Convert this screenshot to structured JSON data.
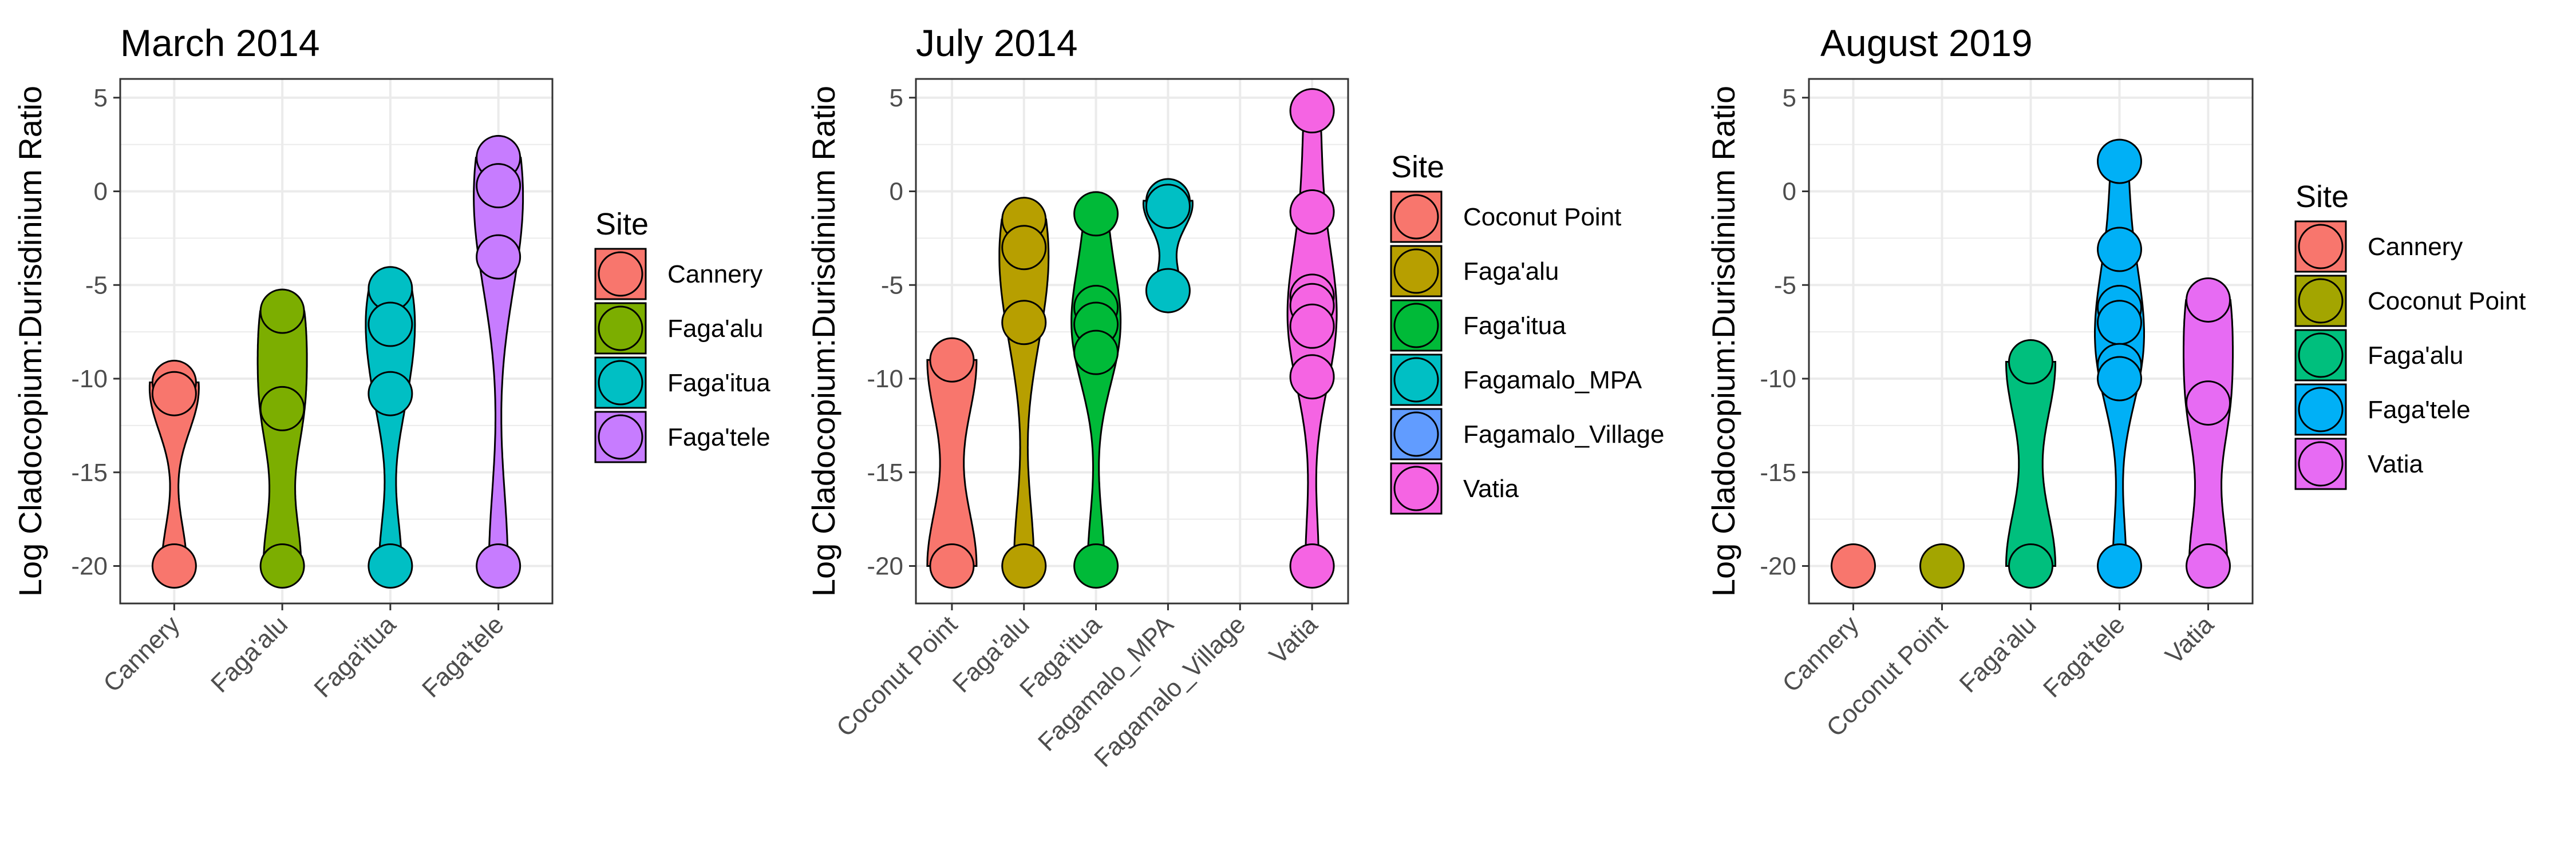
{
  "figure": {
    "ylabel": "Log Cladocopium:Durisdinium Ratio",
    "legend_title": "Site"
  },
  "chart_data": [
    {
      "type": "violin",
      "title": "March 2014",
      "ylabel": "Log Cladocopium:Durisdinium Ratio",
      "ylim": [
        -22,
        6
      ],
      "yticks": [
        5,
        0,
        -5,
        -10,
        -15,
        -20
      ],
      "ytick_labels": [
        "5",
        "0",
        "-5",
        "-10",
        "-15",
        "-20"
      ],
      "grid": true,
      "legend_title": "Site",
      "legend_position": "right",
      "categories": [
        "Cannery",
        "Faga'alu",
        "Faga'itua",
        "Faga'tele"
      ],
      "series": [
        {
          "name": "Cannery",
          "color": "#F8766D",
          "values": [
            -10.2,
            -10.8,
            -20
          ]
        },
        {
          "name": "Faga'alu",
          "color": "#7CAE00",
          "values": [
            -6.4,
            -11.6,
            -20
          ]
        },
        {
          "name": "Faga'itua",
          "color": "#00BFC4",
          "values": [
            -5.2,
            -7.1,
            -10.8,
            -20
          ]
        },
        {
          "name": "Faga'tele",
          "color": "#C77CFF",
          "values": [
            1.8,
            0.3,
            -3.5,
            -20
          ]
        }
      ]
    },
    {
      "type": "violin",
      "title": "July 2014",
      "ylabel": "Log Cladocopium:Durisdinium Ratio",
      "ylim": [
        -22,
        6
      ],
      "yticks": [
        5,
        0,
        -5,
        -10,
        -15,
        -20
      ],
      "ytick_labels": [
        "5",
        "0",
        "-5",
        "-10",
        "-15",
        "-20"
      ],
      "grid": true,
      "legend_title": "Site",
      "legend_position": "right",
      "categories": [
        "Coconut Point",
        "Faga'alu",
        "Faga'itua",
        "Fagamalo_MPA",
        "Fagamalo_Village",
        "Vatia"
      ],
      "series": [
        {
          "name": "Coconut Point",
          "color": "#F8766D",
          "values": [
            -9.0,
            -20
          ]
        },
        {
          "name": "Faga'alu",
          "color": "#B79F00",
          "values": [
            -1.5,
            -3.0,
            -7.0,
            -20
          ]
        },
        {
          "name": "Faga'itua",
          "color": "#00BA38",
          "values": [
            -1.2,
            -6.2,
            -7.1,
            -8.6,
            -20
          ]
        },
        {
          "name": "Fagamalo_MPA",
          "color": "#00BFC4",
          "values": [
            -0.5,
            -0.8,
            -5.3
          ]
        },
        {
          "name": "Fagamalo_Village",
          "color": "#619CFF",
          "values": []
        },
        {
          "name": "Vatia",
          "color": "#F564E3",
          "values": [
            4.3,
            -1.1,
            -5.6,
            -6.1,
            -7.2,
            -9.9,
            -20
          ]
        }
      ]
    },
    {
      "type": "violin",
      "title": "August 2019",
      "ylabel": "Log Cladocopium:Durisdinium Ratio",
      "ylim": [
        -22,
        6
      ],
      "yticks": [
        5,
        0,
        -5,
        -10,
        -15,
        -20
      ],
      "ytick_labels": [
        "5",
        "0",
        "-5",
        "-10",
        "-15",
        "-20"
      ],
      "grid": true,
      "legend_title": "Site",
      "legend_position": "right",
      "categories": [
        "Cannery",
        "Coconut Point",
        "Faga'alu",
        "Faga'tele",
        "Vatia"
      ],
      "series": [
        {
          "name": "Cannery",
          "color": "#F8766D",
          "values": [
            -20
          ]
        },
        {
          "name": "Coconut Point",
          "color": "#A3A500",
          "values": [
            -20
          ]
        },
        {
          "name": "Faga'alu",
          "color": "#00BF7D",
          "values": [
            -9.1,
            -20
          ]
        },
        {
          "name": "Faga'tele",
          "color": "#00B0F6",
          "values": [
            1.6,
            -3.1,
            -6.2,
            -7.0,
            -9.3,
            -10.0,
            -20
          ]
        },
        {
          "name": "Vatia",
          "color": "#E76BF3",
          "values": [
            -5.8,
            -11.3,
            -20
          ]
        }
      ]
    }
  ]
}
